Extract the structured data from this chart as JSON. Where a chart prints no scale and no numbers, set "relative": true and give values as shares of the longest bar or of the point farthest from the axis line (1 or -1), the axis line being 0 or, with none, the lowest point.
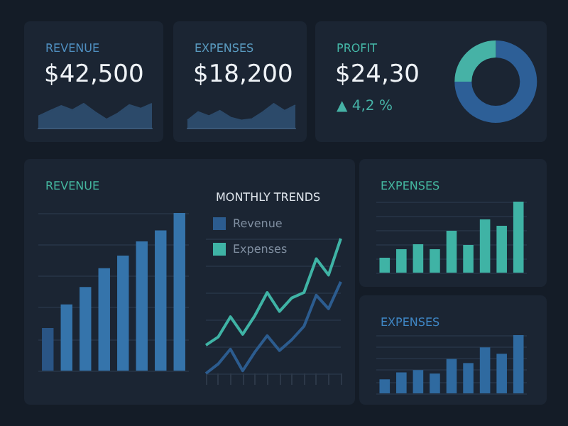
{
  "chart_data": [
    {
      "type": "area",
      "title": "REVENUE",
      "subtitle": "$42,500",
      "relative": true,
      "categories": [
        null,
        null,
        null,
        null,
        null,
        null,
        null,
        null,
        null,
        null,
        null
      ],
      "values": [
        0.48,
        0.7,
        0.91,
        0.74,
        1,
        0.65,
        0.35,
        0.6,
        0.95,
        0.8,
        1
      ],
      "color": "#2c4a6a"
    },
    {
      "type": "area",
      "title": "EXPENSES",
      "subtitle": "$18,200",
      "relative": true,
      "categories": [
        null,
        null,
        null,
        null,
        null,
        null,
        null,
        null,
        null,
        null,
        null
      ],
      "values": [
        0.31,
        0.66,
        0.49,
        0.71,
        0.43,
        0.31,
        0.37,
        0.66,
        1,
        0.71,
        0.94
      ],
      "color": "#2c4a6a"
    },
    {
      "type": "donut",
      "title": "PROFIT",
      "subtitle": "$24,30",
      "annotations": [
        "▲ 4,2 %"
      ],
      "categories": [
        null,
        null
      ],
      "values": [
        75,
        25
      ],
      "colors": [
        "#2d5f97",
        "#46b2a6"
      ]
    },
    {
      "type": "bar",
      "title": "REVENUE",
      "relative": true,
      "grid": "y",
      "categories": [
        null,
        null,
        null,
        null,
        null,
        null,
        null,
        null
      ],
      "values": [
        0.27,
        0.42,
        0.53,
        0.65,
        0.73,
        0.82,
        0.89,
        1
      ],
      "colors": [
        "#2a5585",
        "#3574ab",
        "#3574ab",
        "#3574ab",
        "#3574ab",
        "#3574ab",
        "#3574ab",
        "#3574ab"
      ]
    },
    {
      "type": "line",
      "title": "MONTHLY TRENDS",
      "relative": true,
      "grid": "y",
      "legend": "top left",
      "categories": [
        null,
        null,
        null,
        null,
        null,
        null,
        null,
        null,
        null,
        null,
        null,
        null
      ],
      "series": [
        {
          "name": "Revenue",
          "color": "#2c5c8f",
          "values": [
            0,
            0.07,
            0.18,
            0.02,
            0.16,
            0.28,
            0.17,
            0.25,
            0.35,
            0.58,
            0.48,
            0.68
          ]
        },
        {
          "name": "Expenses",
          "color": "#3fb3a5",
          "values": [
            0.21,
            0.27,
            0.42,
            0.29,
            0.43,
            0.6,
            0.46,
            0.56,
            0.6,
            0.85,
            0.73,
            1
          ]
        }
      ]
    },
    {
      "type": "bar",
      "title": "EXPENSES",
      "relative": true,
      "grid": "y",
      "categories": [
        null,
        null,
        null,
        null,
        null,
        null,
        null,
        null,
        null
      ],
      "values": [
        0.21,
        0.33,
        0.4,
        0.33,
        0.59,
        0.39,
        0.75,
        0.66,
        1
      ],
      "color": "#3fb3a5"
    },
    {
      "type": "bar",
      "title": "EXPENSES",
      "relative": true,
      "grid": "y",
      "categories": [
        null,
        null,
        null,
        null,
        null,
        null,
        null,
        null,
        null
      ],
      "values": [
        0.24,
        0.36,
        0.4,
        0.34,
        0.59,
        0.52,
        0.79,
        0.68,
        1
      ],
      "color": "#2f6aa0"
    }
  ]
}
